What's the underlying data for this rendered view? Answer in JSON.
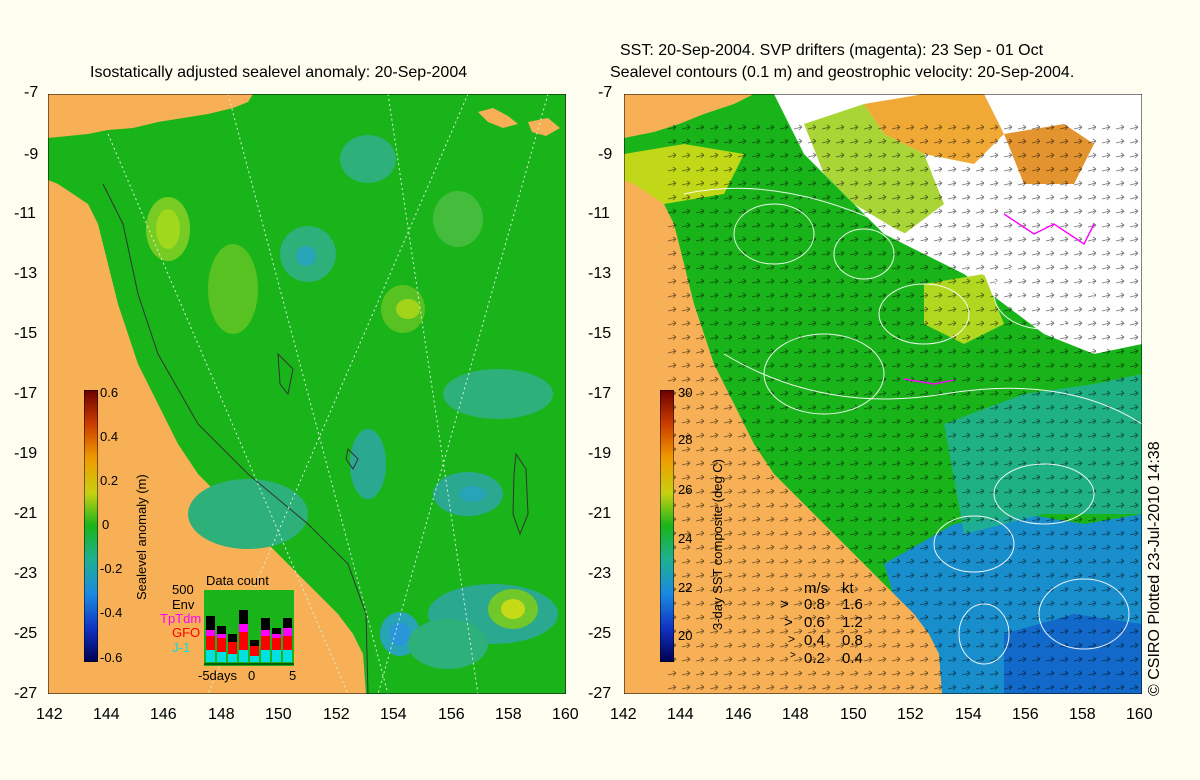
{
  "left_panel": {
    "title": "Isostatically adjusted sealevel anomaly: 20-Sep-2004",
    "colorbar": {
      "label": "Sealevel anomaly (m)",
      "ticks": [
        "0.6",
        "0.4",
        "0.2",
        "0",
        "-0.2",
        "-0.4",
        "-0.6"
      ]
    },
    "data_count": {
      "title": "Data count",
      "scale_label": "500",
      "legend": [
        {
          "name": "Env",
          "color": "#000000"
        },
        {
          "name": "TpTdm",
          "color": "#ff00ff"
        },
        {
          "name": "GFO",
          "color": "#ff0000"
        },
        {
          "name": "J-1",
          "color": "#00e0e0"
        }
      ],
      "x_labels": [
        "-5days",
        "0",
        "5"
      ]
    }
  },
  "right_panel": {
    "title_line1": "SST: 20-Sep-2004. SVP drifters (magenta): 23 Sep - 01 Oct",
    "title_line2": "Sealevel contours (0.1 m) and geostrophic velocity: 20-Sep-2004.",
    "colorbar": {
      "label": "3-day SST composite (deg C)",
      "ticks": [
        "30",
        "28",
        "26",
        "24",
        "22",
        "20"
      ]
    },
    "velocity_legend": {
      "header_ms": "m/s",
      "header_kt": "kt",
      "rows": [
        {
          "ms": "0.8",
          "kt": "1.6"
        },
        {
          "ms": "0.6",
          "kt": "1.2"
        },
        {
          "ms": "0.4",
          "kt": "0.8"
        },
        {
          "ms": "0.2",
          "kt": "0.4"
        }
      ]
    }
  },
  "axes": {
    "y_ticks": [
      "-7",
      "-9",
      "-11",
      "-13",
      "-15",
      "-17",
      "-19",
      "-21",
      "-23",
      "-25",
      "-27"
    ],
    "x_ticks": [
      "142",
      "144",
      "146",
      "148",
      "150",
      "152",
      "154",
      "156",
      "158",
      "160"
    ]
  },
  "credit": "© CSIRO Plotted 23-Jul-2010 14:38",
  "colors": {
    "land": "#f7b055",
    "ocean_green": "#19b419",
    "background": "#fdfdf0"
  }
}
